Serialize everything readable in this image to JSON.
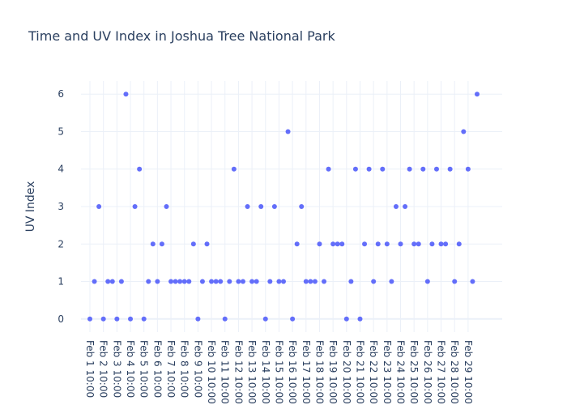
{
  "chart_data": {
    "type": "scatter",
    "title": "Time and UV Index in Joshua Tree National Park",
    "xlabel": "",
    "ylabel": "UV Index",
    "ylim": [
      -0.35,
      6.35
    ],
    "grid": true,
    "marker_color": "#636efa",
    "y_ticks": [
      0,
      1,
      2,
      3,
      4,
      5,
      6
    ],
    "x_tick_labels": [
      "Feb 1 10:00",
      "Feb 2 10:00",
      "Feb 3 10:00",
      "Feb 4 10:00",
      "Feb 5 10:00",
      "Feb 6 10:00",
      "Feb 7 10:00",
      "Feb 8 10:00",
      "Feb 9 10:00",
      "Feb 10 10:00",
      "Feb 11 10:00",
      "Feb 12 10:00",
      "Feb 13 10:00",
      "Feb 14 10:00",
      "Feb 15 10:00",
      "Feb 16 10:00",
      "Feb 17 10:00",
      "Feb 18 10:00",
      "Feb 19 10:00",
      "Feb 20 10:00",
      "Feb 21 10:00",
      "Feb 22 10:00",
      "Feb 23 10:00",
      "Feb 24 10:00",
      "Feb 25 10:00",
      "Feb 26 10:00",
      "Feb 27 10:00",
      "Feb 28 10:00",
      "Feb 29 10:00"
    ],
    "y": [
      0,
      1,
      3,
      0,
      1,
      1,
      0,
      1,
      6,
      0,
      3,
      4,
      0,
      1,
      2,
      1,
      2,
      3,
      1,
      1,
      1,
      1,
      1,
      2,
      0,
      1,
      2,
      1,
      1,
      1,
      0,
      1,
      4,
      1,
      1,
      3,
      1,
      1,
      3,
      0,
      1,
      3,
      1,
      1,
      5,
      0,
      2,
      3,
      1,
      1,
      1,
      2,
      1,
      4,
      2,
      2,
      2,
      0,
      1,
      4,
      0,
      2,
      4,
      1,
      2,
      4,
      2,
      1,
      3,
      2,
      3,
      4,
      2,
      2,
      4,
      1,
      2,
      4,
      2,
      2,
      4,
      1,
      2,
      5,
      4,
      1,
      6
    ]
  }
}
